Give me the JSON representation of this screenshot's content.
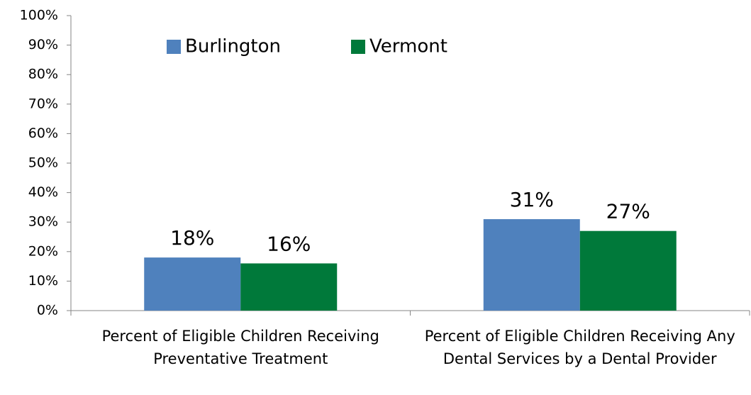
{
  "chart_data": {
    "type": "bar",
    "categories": [
      "Percent of Eligible Children Receiving Preventative Treatment",
      "Percent of Eligible Children Receiving Any Dental Services by a Dental Provider"
    ],
    "series": [
      {
        "name": "Burlington",
        "color": "#4f81bd",
        "values": [
          18,
          31
        ],
        "value_labels": [
          "18%",
          "31%"
        ]
      },
      {
        "name": "Vermont",
        "color": "#00793a",
        "values": [
          16,
          27
        ],
        "value_labels": [
          "16%",
          "27%"
        ]
      }
    ],
    "ylim": [
      0,
      100
    ],
    "yticks": [
      {
        "value": 0,
        "label": "0%"
      },
      {
        "value": 10,
        "label": "10%"
      },
      {
        "value": 20,
        "label": "20%"
      },
      {
        "value": 30,
        "label": "30%"
      },
      {
        "value": 40,
        "label": "40%"
      },
      {
        "value": 50,
        "label": "50%"
      },
      {
        "value": 60,
        "label": "60%"
      },
      {
        "value": 70,
        "label": "70%"
      },
      {
        "value": 80,
        "label": "80%"
      },
      {
        "value": 90,
        "label": "90%"
      },
      {
        "value": 100,
        "label": "100%"
      }
    ]
  }
}
